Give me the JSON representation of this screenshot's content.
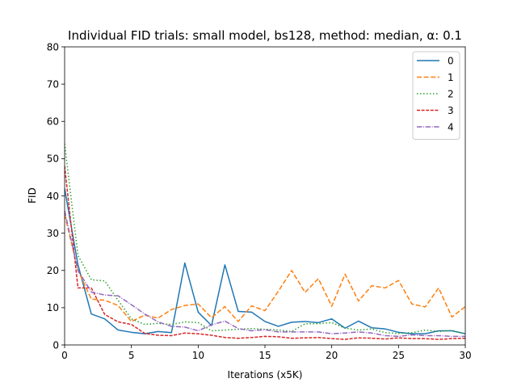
{
  "chart_data": {
    "type": "line",
    "title": "Individual FID trials: small model, bs128, method: median, α: 0.1",
    "xlabel": "Iterations (x5K)",
    "ylabel": "FID",
    "xlim": [
      0,
      30
    ],
    "ylim": [
      0,
      80
    ],
    "x_ticks": [
      "0",
      "5",
      "10",
      "15",
      "20",
      "25",
      "30"
    ],
    "y_ticks": [
      "0",
      "10",
      "20",
      "30",
      "40",
      "50",
      "60",
      "70",
      "80"
    ],
    "grid": false,
    "legend_position": "top-right",
    "x": [
      0,
      1,
      2,
      3,
      4,
      5,
      6,
      7,
      8,
      9,
      10,
      11,
      12,
      13,
      14,
      15,
      16,
      17,
      18,
      19,
      20,
      21,
      22,
      23,
      24,
      25,
      26,
      27,
      28,
      29,
      30
    ],
    "series": [
      {
        "name": "0",
        "color": "#1f77b4",
        "dash": "solid",
        "values": [
          42,
          21.5,
          8.3,
          7,
          4,
          3.4,
          3,
          3.6,
          3.3,
          22,
          8.8,
          5.2,
          21.5,
          9,
          8.8,
          6.3,
          5,
          6.1,
          6.3,
          6,
          7,
          4.5,
          6.4,
          4.6,
          4.3,
          3.4,
          3,
          3,
          3.8,
          3.8,
          3
        ]
      },
      {
        "name": "1",
        "color": "#ff7f0e",
        "dash": "dashed",
        "values": [
          35,
          20,
          12.3,
          12,
          10.6,
          6.3,
          8,
          7.2,
          9.5,
          10.6,
          11,
          7.3,
          10.3,
          6.3,
          10.5,
          9.2,
          14.4,
          20,
          14.1,
          17.8,
          10.4,
          19,
          11.8,
          15.9,
          15.3,
          17.3,
          11,
          10.2,
          15.3,
          7.5,
          10.3
        ]
      },
      {
        "name": "2",
        "color": "#2ca02c",
        "dash": "dotted",
        "values": [
          54,
          24,
          17.5,
          17.2,
          12,
          7,
          5.5,
          5.8,
          5.5,
          6.2,
          6,
          3.8,
          4,
          4.2,
          4.4,
          4.2,
          4,
          3.6,
          5.7,
          5.7,
          6,
          4.5,
          4,
          4.3,
          3.3,
          3.1,
          3.3,
          4,
          3.6,
          3.9,
          3
        ]
      },
      {
        "name": "3",
        "color": "#d62728",
        "dash": "densely-dashed",
        "values": [
          48,
          15.3,
          15.3,
          8.2,
          6.2,
          5.5,
          3.1,
          2.6,
          2.5,
          3.2,
          3,
          2.6,
          2,
          1.8,
          2,
          2.3,
          2.2,
          1.8,
          1.9,
          2,
          1.7,
          1.5,
          1.9,
          1.8,
          1.6,
          1.9,
          1.7,
          1.7,
          1.5,
          1.7,
          1.8
        ]
      },
      {
        "name": "4",
        "color": "#9467bd",
        "dash": "dashdot",
        "values": [
          36,
          20,
          14.2,
          13.4,
          13.2,
          10.8,
          8.3,
          6.2,
          5,
          4.8,
          3.8,
          5.4,
          6.4,
          4.4,
          3.8,
          4.1,
          3.5,
          3.5,
          3.5,
          3.5,
          3,
          3.2,
          3.5,
          3.2,
          2.5,
          2.3,
          2.7,
          2.5,
          2.5,
          2.3,
          2.3
        ]
      }
    ]
  }
}
